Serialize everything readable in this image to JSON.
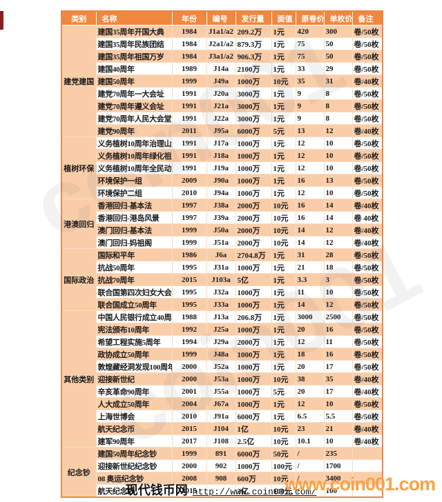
{
  "table": {
    "columns": [
      "类别",
      "名称",
      "年份",
      "编号",
      "发行量",
      "面值",
      "原卷价",
      "单枚价",
      "备注"
    ],
    "categories": [
      {
        "label": "建党建国",
        "rows": [
          {
            "name": "建国35周年开国大典",
            "year": "1984",
            "code": "J1a1/a2",
            "issue": "209.2万",
            "face": "1元",
            "roll": "420",
            "unit": "300",
            "note": "卷/50枚",
            "roll_color": "black",
            "unit_color": "black"
          },
          {
            "name": "建国35周年民族团结",
            "year": "1984",
            "code": "J2a1/a2",
            "issue": "879.3万",
            "face": "1元",
            "roll": "75",
            "unit": "50",
            "note": "卷/50枚",
            "roll_color": "black",
            "unit_color": "black"
          },
          {
            "name": "建国35周年祖国万岁",
            "year": "1984",
            "code": "J3a1/a2",
            "issue": "906.3万",
            "face": "1元",
            "roll": "75",
            "unit": "50",
            "note": "卷/50枚",
            "roll_color": "black",
            "unit_color": "black"
          },
          {
            "name": "建国40周年",
            "year": "1989",
            "code": "J14a",
            "issue": "2100万",
            "face": "1元",
            "roll": "33",
            "unit": "29",
            "note": "卷/50枚",
            "roll_color": "green",
            "unit_color": "green"
          },
          {
            "name": "建国50周年",
            "year": "1999",
            "code": "J49a",
            "issue": "1000万",
            "face": "10元",
            "roll": "35",
            "unit": "31",
            "note": "卷/40枚",
            "roll_color": "black",
            "unit_color": "black"
          },
          {
            "name": "建党70周年一大会址",
            "year": "1991",
            "code": "J20a",
            "issue": "3000万",
            "face": "1元",
            "roll": "9",
            "unit": "8",
            "note": "卷/50枚",
            "roll_color": "black",
            "unit_color": "black"
          },
          {
            "name": "建党70周年遵义会址",
            "year": "1991",
            "code": "J21a",
            "issue": "3000万",
            "face": "1元",
            "roll": "9",
            "unit": "8",
            "note": "卷/50枚",
            "roll_color": "black",
            "unit_color": "black"
          },
          {
            "name": "建党70周年人民大会堂",
            "year": "1991",
            "code": "J22a",
            "issue": "3000万",
            "face": "1元",
            "roll": "9",
            "unit": "8",
            "note": "卷/50枚",
            "roll_color": "black",
            "unit_color": "black"
          },
          {
            "name": "建党90周年",
            "year": "2011",
            "code": "J95a",
            "issue": "6000万",
            "face": "5元",
            "roll": "13",
            "unit": "12",
            "note": "卷/40枚",
            "roll_color": "black",
            "unit_color": "black"
          }
        ]
      },
      {
        "label": "植树环保",
        "rows": [
          {
            "name": "义务植树10周年治理山河",
            "year": "1991",
            "code": "J17a",
            "issue": "1000万",
            "face": "1元",
            "roll": "12",
            "unit": "10",
            "note": "卷/50枚",
            "roll_color": "black",
            "unit_color": "black"
          },
          {
            "name": "义务植树10周年绿化祖国",
            "year": "1991",
            "code": "J18a",
            "issue": "1000万",
            "face": "1元",
            "roll": "12",
            "unit": "10",
            "note": "卷/50枚",
            "roll_color": "black",
            "unit_color": "black"
          },
          {
            "name": "义务植树10周年全民动员",
            "year": "1991",
            "code": "J19a",
            "issue": "1000万",
            "face": "1元",
            "roll": "12",
            "unit": "10",
            "note": "卷/50枚",
            "roll_color": "black",
            "unit_color": "black"
          },
          {
            "name": "环境保护一组",
            "year": "2009",
            "code": "J90a",
            "issue": "1000万",
            "face": "1元",
            "roll": "16",
            "unit": "13",
            "note": "卷/50枚",
            "roll_color": "black",
            "unit_color": "black"
          },
          {
            "name": "环境保护二组",
            "year": "2010",
            "code": "J94a",
            "issue": "1000万",
            "face": "1元",
            "roll": "12",
            "unit": "10",
            "note": "卷/50枚",
            "roll_color": "black",
            "unit_color": "black"
          }
        ]
      },
      {
        "label": "港澳回归",
        "rows": [
          {
            "name": "香港回归-基本法",
            "year": "1997",
            "code": "J38a",
            "issue": "2000万",
            "face": "10元",
            "roll": "16",
            "unit": "14",
            "note": "卷/40枚",
            "roll_color": "black",
            "unit_color": "black"
          },
          {
            "name": "香港回归-港岛风景",
            "year": "1997",
            "code": "J39a",
            "issue": "2000万",
            "face": "10元",
            "roll": "16",
            "unit": "14",
            "note": "卷 40枚",
            "roll_color": "black",
            "unit_color": "black"
          },
          {
            "name": "澳门回归-基本法",
            "year": "1999",
            "code": "J50a",
            "issue": "2000万",
            "face": "10元",
            "roll": "14",
            "unit": "12",
            "note": "卷/40枚",
            "roll_color": "black",
            "unit_color": "black"
          },
          {
            "name": "澳门回归-妈祖阁",
            "year": "1999",
            "code": "J51a",
            "issue": "2000万",
            "face": "10元",
            "roll": "14",
            "unit": "12",
            "note": "卷/40枚",
            "roll_color": "black",
            "unit_color": "black"
          }
        ]
      },
      {
        "label": "国际政治",
        "rows": [
          {
            "name": "国际和平年",
            "year": "1986",
            "code": "J6a",
            "issue": "2704.8万",
            "face": "1元",
            "roll": "31",
            "unit": "28",
            "note": "卷/50枚",
            "roll_color": "black",
            "unit_color": "black"
          },
          {
            "name": "抗战50周年",
            "year": "1995",
            "code": "J31a",
            "issue": "1000万",
            "face": "1元",
            "roll": "21",
            "unit": "18",
            "note": "卷/50枚",
            "roll_color": "black",
            "unit_color": "black"
          },
          {
            "name": "抗战70周年",
            "year": "2015",
            "code": "J103a",
            "issue": "5亿",
            "face": "1元",
            "roll": "3.3",
            "unit": "3",
            "note": "卷/50枚",
            "roll_color": "red",
            "unit_color": "red"
          },
          {
            "name": "联合国第四次妇女大会",
            "year": "1995",
            "code": "J32a",
            "issue": "1000万",
            "face": "1元",
            "roll": "11",
            "unit": "10",
            "note": "卷/50枚",
            "roll_color": "green",
            "unit_color": "green"
          },
          {
            "name": "联合国成立50周年",
            "year": "1995",
            "code": "J33a",
            "issue": "1000万",
            "face": "1元",
            "roll": "14",
            "unit": "12",
            "note": "卷/50枚",
            "roll_color": "green",
            "unit_color": "green"
          }
        ]
      },
      {
        "label": "其他类别",
        "rows": [
          {
            "name": "中国人民银行成立40周年",
            "year": "1988",
            "code": "J13a",
            "issue": "206.8万",
            "face": "1元",
            "roll": "3000",
            "unit": "2500",
            "note": "卷/50枚",
            "roll_color": "black",
            "unit_color": "black"
          },
          {
            "name": "宪法颁布10周年",
            "year": "1992",
            "code": "J25a",
            "issue": "1000万",
            "face": "1元",
            "roll": "20",
            "unit": "16",
            "note": "卷/50枚",
            "roll_color": "black",
            "unit_color": "black"
          },
          {
            "name": "希望工程实施5周年",
            "year": "1994",
            "code": "J29a",
            "issue": "2000万",
            "face": "1元",
            "roll": "12",
            "unit": "11",
            "note": "卷/50枚",
            "roll_color": "black",
            "unit_color": "black"
          },
          {
            "name": "政协成立50周年",
            "year": "1999",
            "code": "J48a",
            "issue": "1000万",
            "face": "1元",
            "roll": "18",
            "unit": "16",
            "note": "卷/50枚",
            "roll_color": "green",
            "unit_color": "green"
          },
          {
            "name": "敦煌藏经洞发现100周年",
            "year": "2000",
            "code": "J52a",
            "issue": "1000万",
            "face": "1元",
            "roll": "20",
            "unit": "17",
            "note": "卷/50枚",
            "roll_color": "green",
            "unit_color": "black"
          },
          {
            "name": "迎接新世纪",
            "year": "2000",
            "code": "J53a",
            "issue": "1000万",
            "face": "10元",
            "roll": "38",
            "unit": "35",
            "note": "卷/40枚",
            "roll_color": "red",
            "unit_color": "red"
          },
          {
            "name": "辛亥革命90周年",
            "year": "2001",
            "code": "J55a",
            "issue": "1000万",
            "face": "5元",
            "roll": "20",
            "unit": "17",
            "note": "卷/40枚",
            "roll_color": "red",
            "unit_color": "red"
          },
          {
            "name": "人大成立50周年",
            "year": "2004",
            "code": "J67a",
            "issue": "1000万",
            "face": "1元",
            "roll": "12",
            "unit": "10",
            "note": "卷/50枚",
            "roll_color": "green",
            "unit_color": "green"
          },
          {
            "name": "上海世博会",
            "year": "2010",
            "code": "J91a",
            "issue": "6000万",
            "face": "1元",
            "roll": "6.5",
            "unit": "5.5",
            "note": "卷/50枚",
            "roll_color": "green",
            "unit_color": "green"
          },
          {
            "name": "航天纪念币",
            "year": "2015",
            "code": "J104",
            "issue": "1亿",
            "face": "10元",
            "roll": "23",
            "unit": "21",
            "note": "卷/40枚",
            "roll_color": "black",
            "unit_color": "black"
          },
          {
            "name": "建军90周年",
            "year": "2017",
            "code": "J108",
            "issue": "2.5亿",
            "face": "10元",
            "roll": "10.1",
            "unit": "10",
            "note": "卷/40枚",
            "roll_color": "green",
            "unit_color": "green"
          }
        ]
      },
      {
        "label": "纪念钞",
        "rows": [
          {
            "name": "建国50周年纪念钞",
            "year": "1999",
            "code": "891",
            "issue": "6000万",
            "face": "50元",
            "roll": "/",
            "unit": "235",
            "note": "",
            "roll_color": "black",
            "unit_color": "black"
          },
          {
            "name": "迎接新世纪纪念钞",
            "year": "2000",
            "code": "902",
            "issue": "1000万",
            "face": "100元",
            "roll": "/",
            "unit": "1700",
            "note": "",
            "roll_color": "black",
            "unit_color": "black"
          },
          {
            "name": "08 奥运纪念钞",
            "year": "2008",
            "code": "908",
            "issue": "600万",
            "face": "10元",
            "roll": "/",
            "unit": "3400",
            "note": "",
            "roll_color": "black",
            "unit_color": "black"
          },
          {
            "name": "航天纪念钞",
            "year": "2015",
            "code": "",
            "issue": "3亿",
            "face": "100元",
            "roll": "/",
            "unit": "100",
            "note": "",
            "roll_color": "black",
            "unit_color": "black"
          }
        ]
      }
    ]
  },
  "footer": {
    "site_name": "现代钱币网",
    "site_url": "http://www.coin001.com/",
    "watermark": "www.coin001.com",
    "ghost_watermark": "coin001"
  },
  "colors": {
    "header_bg": "#f0883e",
    "stripe_bg": "#facda9",
    "price_up_green": "#00a050",
    "price_down_red": "#ff0000",
    "watermark_orange": "#f9a245"
  }
}
